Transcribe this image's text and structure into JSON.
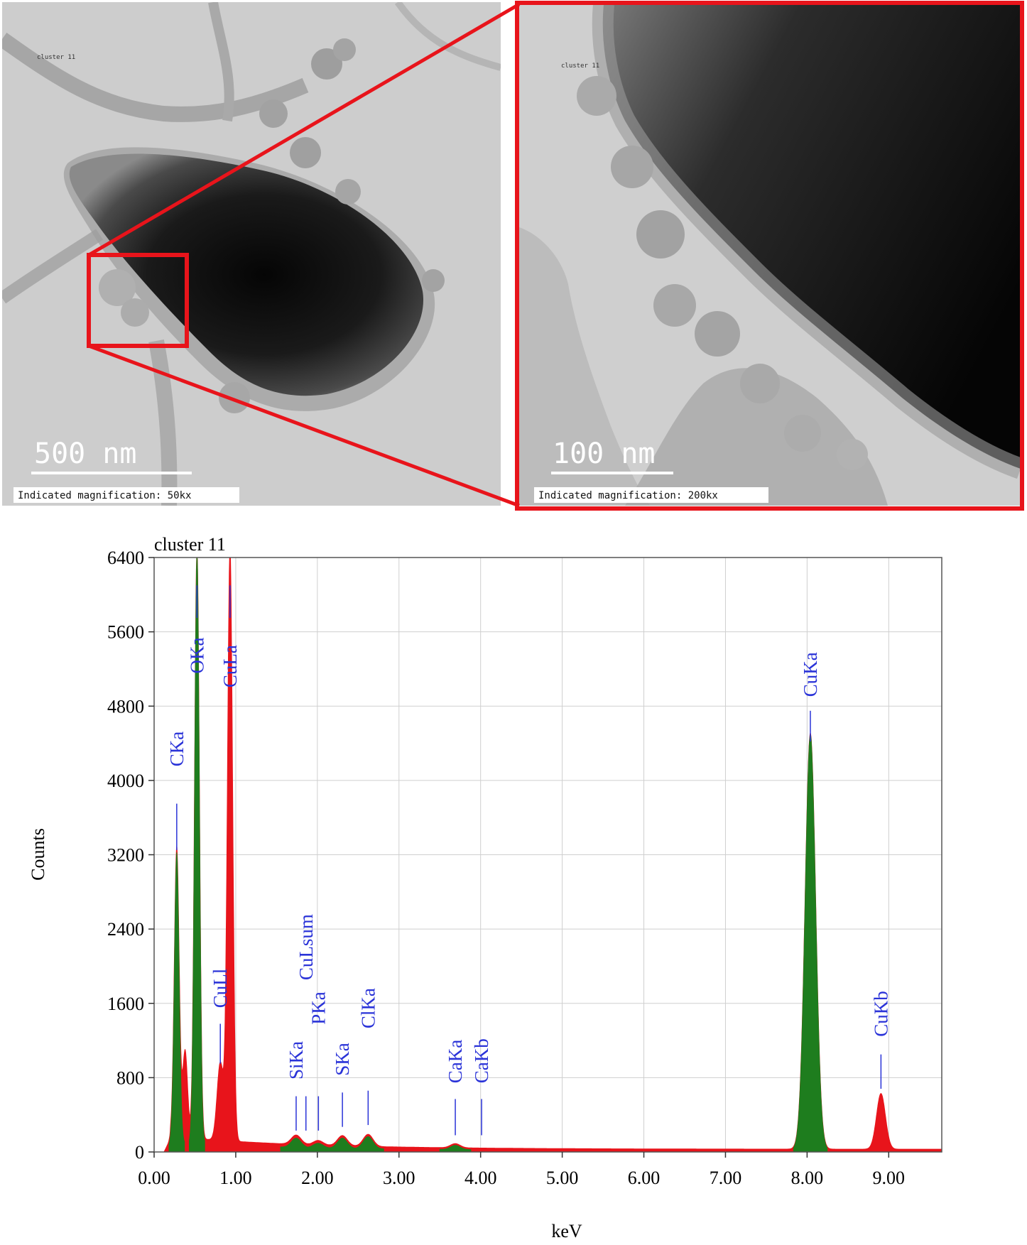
{
  "micrographs": {
    "left": {
      "sample_label": "cluster 11",
      "scale_bar": "500 nm",
      "magnification": "Indicated magnification: 50kx"
    },
    "right": {
      "sample_label": "cluster 11",
      "scale_bar": "100 nm",
      "magnification": "Indicated magnification: 200kx"
    },
    "highlight_color": "#e8141b"
  },
  "chart_data": {
    "type": "area",
    "title": "cluster 11",
    "xlabel": "keV",
    "ylabel": "Counts",
    "xlim": [
      0,
      9.65
    ],
    "ylim": [
      0,
      6400
    ],
    "x_ticks": [
      "0.00",
      "1.00",
      "2.00",
      "3.00",
      "4.00",
      "5.00",
      "6.00",
      "7.00",
      "8.00",
      "9.00"
    ],
    "y_ticks": [
      "0",
      "800",
      "1600",
      "2400",
      "3200",
      "4000",
      "4800",
      "5600",
      "6400"
    ],
    "grid": true,
    "colors": {
      "spectrum": "#e8141b",
      "element_fill": "#1e7d1e",
      "peak_label": "#2a33d8"
    },
    "peak_labels": [
      {
        "label": "CKa",
        "kev": 0.277,
        "line_top": 3750,
        "line_bottom": 3250,
        "text_bottom": 4150
      },
      {
        "label": "OKa",
        "kev": 0.525,
        "line_top": 6100,
        "line_bottom": 5750,
        "text_bottom": 5150
      },
      {
        "label": "CuLa",
        "kev": 0.93,
        "line_top": 6100,
        "line_bottom": 5750,
        "text_bottom": 5000
      },
      {
        "label": "CuLl",
        "kev": 0.811,
        "line_top": 1380,
        "line_bottom": 950,
        "text_bottom": 1550
      },
      {
        "label": "SiKa",
        "kev": 1.74,
        "line_top": 600,
        "line_bottom": 230,
        "text_bottom": 780
      },
      {
        "label": "CuLsum",
        "kev": 1.86,
        "line_top": 600,
        "line_bottom": 230,
        "text_bottom": 1850
      },
      {
        "label": "PKa",
        "kev": 2.013,
        "line_top": 600,
        "line_bottom": 230,
        "text_bottom": 1370
      },
      {
        "label": "SKa",
        "kev": 2.307,
        "line_top": 640,
        "line_bottom": 270,
        "text_bottom": 820
      },
      {
        "label": "ClKa",
        "kev": 2.622,
        "line_top": 660,
        "line_bottom": 290,
        "text_bottom": 1330
      },
      {
        "label": "CaKa",
        "kev": 3.69,
        "line_top": 570,
        "line_bottom": 180,
        "text_bottom": 740
      },
      {
        "label": "CaKb",
        "kev": 4.012,
        "line_top": 570,
        "line_bottom": 180,
        "text_bottom": 740
      },
      {
        "label": "CuKa",
        "kev": 8.04,
        "line_top": 4750,
        "line_bottom": 4420,
        "text_bottom": 4900
      },
      {
        "label": "CuKb",
        "kev": 8.905,
        "line_top": 1050,
        "line_bottom": 680,
        "text_bottom": 1240
      }
    ],
    "peaks": [
      {
        "kev": 0.277,
        "counts": 3130,
        "width": 0.03,
        "element": "C"
      },
      {
        "kev": 0.525,
        "counts": 6400,
        "width": 0.03,
        "element": "O"
      },
      {
        "kev": 0.38,
        "counts": 940,
        "width": 0.03,
        "element": ""
      },
      {
        "kev": 0.811,
        "counts": 840,
        "width": 0.04,
        "element": ""
      },
      {
        "kev": 0.93,
        "counts": 6400,
        "width": 0.032,
        "element": ""
      },
      {
        "kev": 1.74,
        "counts": 100,
        "width": 0.06,
        "element": "Si"
      },
      {
        "kev": 2.01,
        "counts": 50,
        "width": 0.06,
        "element": "P"
      },
      {
        "kev": 2.307,
        "counts": 110,
        "width": 0.06,
        "element": "S"
      },
      {
        "kev": 2.622,
        "counts": 130,
        "width": 0.06,
        "element": "Cl"
      },
      {
        "kev": 3.69,
        "counts": 45,
        "width": 0.06,
        "element": "Ca"
      },
      {
        "kev": 8.04,
        "counts": 4480,
        "width": 0.065,
        "element": "Cu"
      },
      {
        "kev": 8.905,
        "counts": 600,
        "width": 0.055,
        "element": ""
      }
    ]
  }
}
